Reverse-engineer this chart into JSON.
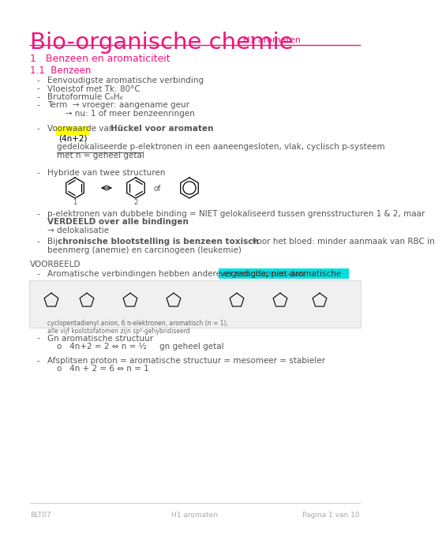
{
  "bg_color": "#ffffff",
  "pink": "#f0147a",
  "black": "#000000",
  "gray": "#555555",
  "light_gray": "#aaaaaa",
  "title_main": "Bio-organische chemie",
  "title_sub": "H1 aromaten",
  "section1": "1   Benzeen en aromaticiteit",
  "section11": "1.1  Benzeen",
  "bullets": [
    "Eenvoudigste aromatische verbinding",
    "Vloeistof met Tk: 80°C",
    "Brutoformule C₆H₆",
    "Term  → vroeger: aangename geur",
    "       → nu: 1 of meer benzeenringen"
  ],
  "huckel_intro_normal": "Voorwaarde van ",
  "huckel_intro_bold": "Hückel voor aromaten",
  "huckel_formula": "(4n+2)",
  "huckel_desc1": "gedelokaliseerde p-elektronen in een aaneengesloten, vlak, cyclisch p-systeem",
  "huckel_desc2": "met n = geheel getal",
  "hybrid_text": "Hybride van twee structuren",
  "pe_text1": "p-elektronen van dubbele binding = NIET gelokaliseerd tussen grensstructuren 1 & 2, maar",
  "pe_text2": "VERDEELD over alle bindingen",
  "arrow_text": "→ delokalisatie",
  "chronic_bold": "chronische blootstelling is benzeen toxisch",
  "chronic_rest": " voor het bloed: minder aanmaak van RBC in",
  "chronic_text2": "beenmerg (anemie) en carcinogeen (leukemie)",
  "voorbeeld": "VOORBEELD",
  "voorbeeld_desc": "Aromatische verbindingen hebben andere eigenschappen dan ",
  "voorbeeld_highlight": "verzadigde, niet-aromatische",
  "cyclo_text": "cyclopentadienyl anion, 6 π-elektronen, aromatisch (n = 1),",
  "cyclo_text2": "alle vijf koolstofatomen zijn sp²-gehybridiseerd",
  "gn_arom": "Gn aromatische structuur",
  "gn_bullet1": "o   4n+2 = 2 ⇔ n = ½     gn geheel getal",
  "afsplitsen": "Afsplitsen proton = aromatische structuur = mesomeer = stabieler",
  "afsplitsen2": "o   4n + 2 = 6 ⇔ n = 1",
  "footer_left": "BLT07",
  "footer_center": "H1 aromaten",
  "footer_right": "Pagina 1 van 10"
}
